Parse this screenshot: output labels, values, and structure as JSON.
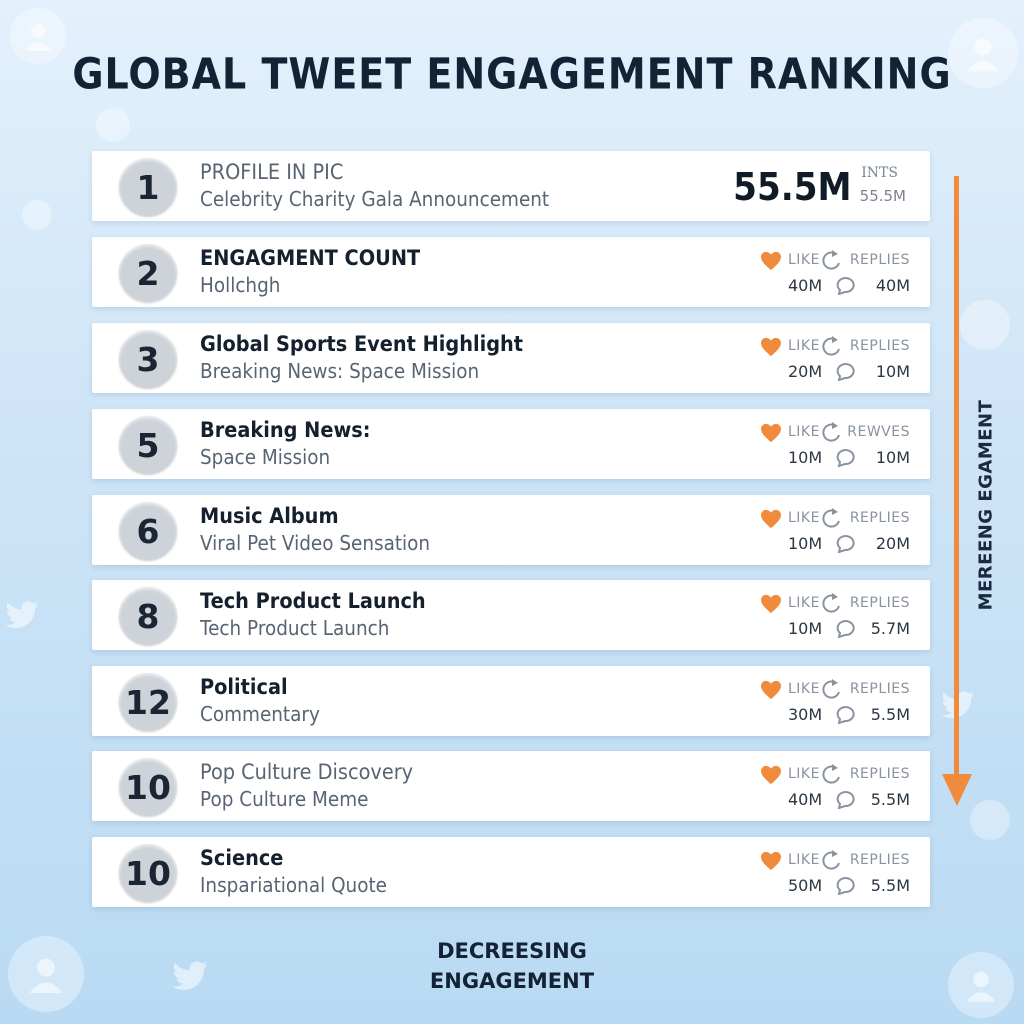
{
  "title": "GLOBAL TWEET ENGAGEMENT RANKING",
  "side_label": "MEREENG EGAMENT",
  "footer": {
    "line1": "DECREESING",
    "line2": "ENGAGEMENT"
  },
  "colors": {
    "accent": "#f08a3c",
    "text": "#142235",
    "muted": "#586474"
  },
  "icons": {
    "like": "heart-icon",
    "retweet": "retweet-icon",
    "reply": "reply-icon",
    "trend": "down-arrow-icon"
  },
  "top_entry": {
    "rank": "1",
    "line1": "PROFILE IN PIC",
    "line2": "Celebrity Charity Gala Announcement",
    "big_value": "55.5M",
    "unit_label": "INTS",
    "unit_value": "55.5M"
  },
  "entries": [
    {
      "rank": "2",
      "line1": "ENGAGMENT COUNT",
      "line2": "Hollchgh",
      "like_label": "LIKE",
      "reply_label": "REPLIES",
      "likes": "40M",
      "replies": "40M"
    },
    {
      "rank": "3",
      "line1": "Global Sports Event Highlight",
      "line2": "Breaking News: Space Mission",
      "like_label": "LIKE",
      "reply_label": "REPLIES",
      "likes": "20M",
      "replies": "10M"
    },
    {
      "rank": "5",
      "line1": "Breaking News:",
      "line2": "Space Mission",
      "like_label": "LIKE",
      "reply_label": "REWVES",
      "likes": "10M",
      "replies": "10M"
    },
    {
      "rank": "6",
      "line1": "Music Album",
      "line2": "Viral Pet Video Sensation",
      "like_label": "LIKE",
      "reply_label": "REPLIES",
      "likes": "10M",
      "replies": "20M"
    },
    {
      "rank": "8",
      "line1": "Tech Product Launch",
      "line2": "Tech Product Launch",
      "like_label": "LIKE",
      "reply_label": "REPLIES",
      "likes": "10M",
      "replies": "5.7M"
    },
    {
      "rank": "12",
      "line1": "Political",
      "line2": "Commentary",
      "like_label": "LIKE",
      "reply_label": "REPLIES",
      "likes": "30M",
      "replies": "5.5M"
    },
    {
      "rank": "10",
      "line1": "Pop Culture Discovery",
      "line2": "Pop Culture Meme",
      "light_line1": true,
      "like_label": "LIKE",
      "reply_label": "REPLIES",
      "likes": "40M",
      "replies": "5.5M"
    },
    {
      "rank": "10",
      "line1": "Science",
      "line2": "Inspariational Quote",
      "like_label": "LIKE",
      "reply_label": "REPLIES",
      "likes": "50M",
      "replies": "5.5M"
    }
  ]
}
